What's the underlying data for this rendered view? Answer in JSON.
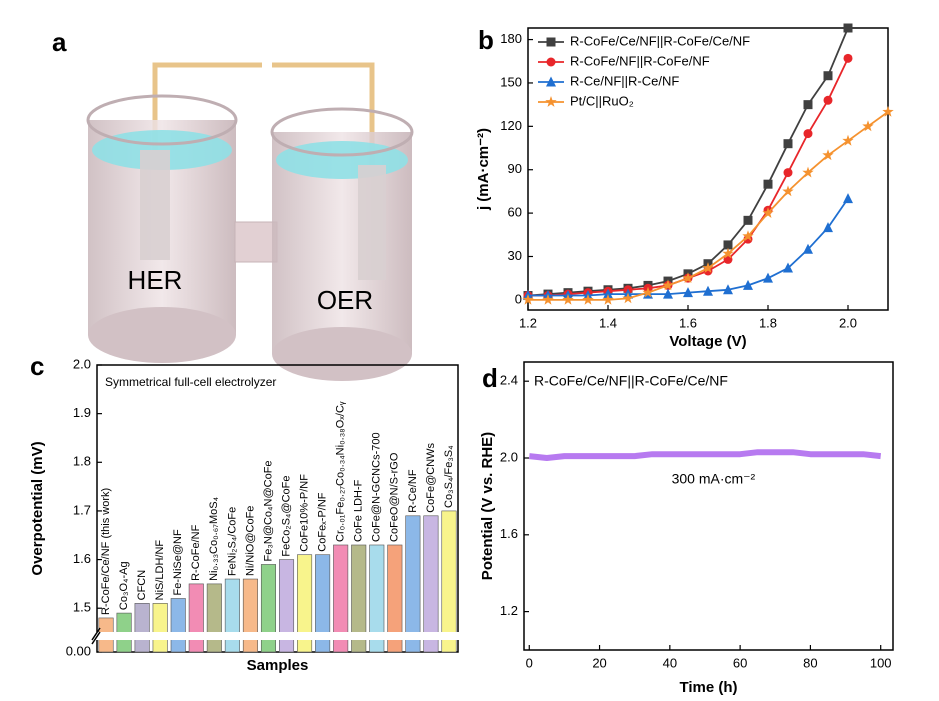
{
  "illustration": {
    "panel_label": "a",
    "labels": [
      "HER",
      "OER"
    ]
  },
  "chart_data": [
    {
      "type": "line",
      "panel_label": "b",
      "xlabel": "Voltage (V)",
      "ylabel": "j (mA·cm⁻²)",
      "x": [
        1.2,
        1.25,
        1.3,
        1.35,
        1.4,
        1.45,
        1.5,
        1.55,
        1.6,
        1.65,
        1.7,
        1.75,
        1.8,
        1.85,
        1.9,
        1.95,
        2.0,
        2.05,
        2.1
      ],
      "series": [
        {
          "name": "R-CoFe/Ce/NF||R-CoFe/Ce/NF",
          "color": "#404040",
          "marker": "square",
          "values": [
            3,
            4,
            5,
            6,
            7,
            8,
            10,
            13,
            18,
            25,
            38,
            55,
            80,
            108,
            135,
            155,
            188,
            null,
            null
          ]
        },
        {
          "name": "R-CoFe/NF||R-CoFe/NF",
          "color": "#e8262a",
          "marker": "circle",
          "values": [
            3,
            3,
            4,
            5,
            6,
            7,
            8,
            10,
            15,
            20,
            28,
            42,
            62,
            88,
            115,
            138,
            167,
            null,
            null
          ]
        },
        {
          "name": "R-Ce/NF||R-Ce/NF",
          "color": "#1f6fd1",
          "marker": "triangle",
          "values": [
            3,
            3,
            3,
            3,
            4,
            4,
            4,
            4,
            5,
            6,
            7,
            10,
            15,
            22,
            35,
            50,
            70,
            null,
            null
          ]
        },
        {
          "name": "Pt/C||RuO₂",
          "color": "#f5922f",
          "marker": "star",
          "values": [
            0,
            0,
            0,
            0,
            0,
            1,
            5,
            10,
            15,
            22,
            32,
            44,
            60,
            75,
            88,
            100,
            110,
            120,
            130
          ]
        }
      ],
      "xlim": [
        1.2,
        2.1
      ],
      "xticks": [
        1.2,
        1.4,
        1.6,
        1.8,
        {
          "value": 2,
          "label": "2.0"
        }
      ],
      "ylim": [
        -7,
        188
      ],
      "yticks": [
        0,
        30,
        60,
        90,
        120,
        150,
        180
      ],
      "legend": "upper left"
    },
    {
      "type": "bar",
      "panel_label": "c",
      "annotation": "Symmetrical full-cell electrolyzer",
      "annotation_color": "#2222cc",
      "xlabel": "Samples",
      "ylabel": "Overpotential (mV)",
      "categories": [
        "R-CoFe/Ce/NF (this work)",
        "Co₃O₄-Ag",
        "CFCN",
        "NiS/LDH/NF",
        "Fe-NiSe@NF",
        "R-CoFe/NF",
        "Ni₀.₃₃Co₀.₆₇MoS₄",
        "FeNi₂S₄/CoFe",
        "Ni/NiO@CoFe",
        "Fe₃N@Co₄N@CoFe",
        "FeCo₂S₄@CoFe",
        "CoFe10%-P/NF",
        "CoFeₓ-P/NF",
        "Cr₀.₀₁Fe₀.₂₇Co₀.₃₄Ni₀.₃₈Oₓ/Cᵧ",
        "CoFe LDH-F",
        "CoFe@N-GCNCs-700",
        "CoFeO@N/S-rGO",
        "R-Ce/NF",
        "CoFe@CNWs",
        "Co₃S₄/Fe₃S₄"
      ],
      "category_colors": [
        "#e8262a",
        "#000",
        "#000",
        "#000",
        "#000",
        "#000",
        "#000",
        "#000",
        "#000",
        "#000",
        "#000",
        "#000",
        "#000",
        "#000",
        "#000",
        "#000",
        "#000",
        "#000",
        "#000",
        "#000"
      ],
      "values": [
        1.48,
        1.49,
        1.51,
        1.51,
        1.52,
        1.55,
        1.55,
        1.56,
        1.56,
        1.59,
        1.6,
        1.61,
        1.61,
        1.63,
        1.63,
        1.63,
        1.63,
        1.69,
        1.69,
        1.7
      ],
      "colors": [
        "#f7b98a",
        "#8fd18a",
        "#b9b3cf",
        "#f8f48c",
        "#8cb8e8",
        "#f28cb4",
        "#b5b98a",
        "#a8dcec",
        "#f7b98a",
        "#8fd18a",
        "#c8b6e2",
        "#f8f48c",
        "#8cb8e8",
        "#f28cb4",
        "#b5b98a",
        "#a8dcec",
        "#f5a27a",
        "#8cb8e8",
        "#c8b6e2",
        "#f8f48c"
      ],
      "ylim": [
        1.41,
        2.0
      ],
      "yticks": [
        {
          "value": 0,
          "label": "0.00"
        },
        1.5,
        1.6,
        1.7,
        1.8,
        1.9,
        {
          "value": 2,
          "label": "2.0"
        }
      ]
    },
    {
      "type": "line",
      "panel_label": "d",
      "xlabel": "Time (h)",
      "ylabel": "Potential (V vs. RHE)",
      "annotation": "300 mA·cm⁻²",
      "annotation_color": "#b070e8",
      "x": [
        0,
        5,
        10,
        15,
        20,
        25,
        30,
        35,
        40,
        45,
        50,
        55,
        60,
        65,
        70,
        75,
        80,
        85,
        90,
        95,
        100
      ],
      "series": [
        {
          "name": "R-CoFe/Ce/NF||R-CoFe/Ce/NF",
          "color": "#b77af0",
          "values": [
            2.01,
            2.0,
            2.01,
            2.01,
            2.01,
            2.01,
            2.01,
            2.02,
            2.02,
            2.02,
            2.02,
            2.02,
            2.02,
            2.03,
            2.03,
            2.03,
            2.02,
            2.02,
            2.02,
            2.02,
            2.01
          ]
        }
      ],
      "xlim": [
        -1.5,
        103.5
      ],
      "xticks": [
        0,
        20,
        40,
        60,
        80,
        100
      ],
      "ylim": [
        1.0,
        2.5
      ],
      "yticks": [
        1.2,
        1.6,
        {
          "value": 2,
          "label": "2.0"
        },
        2.4
      ],
      "legend": "upper left"
    }
  ]
}
